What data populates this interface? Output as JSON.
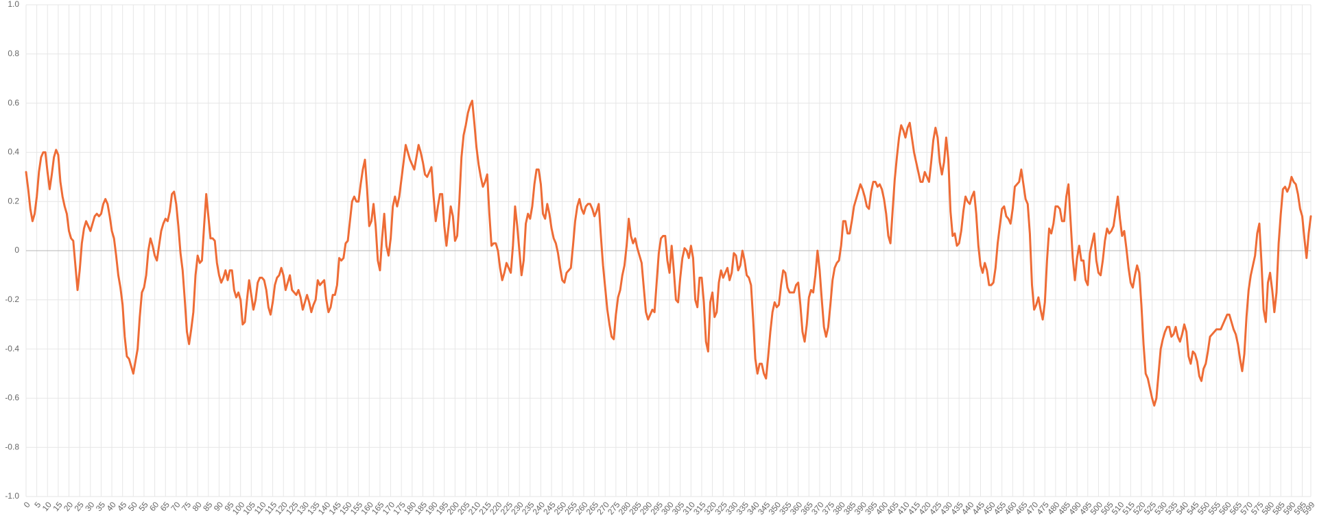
{
  "chart_data": {
    "type": "line",
    "color": "#ee6c36",
    "grid": true,
    "xlim": [
      0,
      599
    ],
    "ylim": [
      -1,
      1
    ],
    "yticks": [
      {
        "value": -1,
        "label": "-1.0"
      },
      -0.8,
      -0.6,
      -0.4,
      -0.2,
      0,
      0.2,
      0.4,
      0.6,
      0.8,
      {
        "value": 1,
        "label": "1.0"
      }
    ],
    "xticks": [
      0,
      5,
      10,
      15,
      20,
      25,
      30,
      35,
      40,
      45,
      50,
      55,
      60,
      65,
      70,
      75,
      80,
      85,
      90,
      95,
      100,
      105,
      110,
      115,
      120,
      125,
      130,
      135,
      140,
      145,
      150,
      155,
      160,
      165,
      170,
      175,
      180,
      185,
      190,
      195,
      200,
      205,
      210,
      215,
      220,
      225,
      230,
      235,
      240,
      245,
      250,
      255,
      260,
      265,
      270,
      275,
      280,
      285,
      290,
      295,
      300,
      305,
      310,
      315,
      320,
      325,
      330,
      335,
      340,
      345,
      350,
      355,
      360,
      365,
      370,
      375,
      380,
      385,
      390,
      395,
      400,
      405,
      410,
      415,
      420,
      425,
      430,
      435,
      440,
      445,
      450,
      455,
      460,
      465,
      470,
      475,
      480,
      485,
      490,
      495,
      500,
      505,
      510,
      515,
      520,
      525,
      530,
      535,
      540,
      545,
      550,
      555,
      560,
      565,
      570,
      575,
      580,
      585,
      590,
      595,
      599
    ],
    "x": [
      0,
      1,
      2,
      3,
      4,
      5,
      6,
      7,
      8,
      9,
      10,
      11,
      12,
      13,
      14,
      15,
      16,
      17,
      18,
      19,
      20,
      21,
      22,
      23,
      24,
      25,
      26,
      27,
      28,
      29,
      30,
      31,
      32,
      33,
      34,
      35,
      36,
      37,
      38,
      39,
      40,
      41,
      42,
      43,
      44,
      45,
      46,
      47,
      48,
      49,
      50,
      51,
      52,
      53,
      54,
      55,
      56,
      57,
      58,
      59,
      60,
      61,
      62,
      63,
      64,
      65,
      66,
      67,
      68,
      69,
      70,
      71,
      72,
      73,
      74,
      75,
      76,
      77,
      78,
      79,
      80,
      81,
      82,
      83,
      84,
      85,
      86,
      87,
      88,
      89,
      90,
      91,
      92,
      93,
      94,
      95,
      96,
      97,
      98,
      99,
      100,
      101,
      102,
      103,
      104,
      105,
      106,
      107,
      108,
      109,
      110,
      111,
      112,
      113,
      114,
      115,
      116,
      117,
      118,
      119,
      120,
      121,
      122,
      123,
      124,
      125,
      126,
      127,
      128,
      129,
      130,
      131,
      132,
      133,
      134,
      135,
      136,
      137,
      138,
      139,
      140,
      141,
      142,
      143,
      144,
      145,
      146,
      147,
      148,
      149,
      150,
      151,
      152,
      153,
      154,
      155,
      156,
      157,
      158,
      159,
      160,
      161,
      162,
      163,
      164,
      165,
      166,
      167,
      168,
      169,
      170,
      171,
      172,
      173,
      174,
      175,
      176,
      177,
      178,
      179,
      180,
      181,
      182,
      183,
      184,
      185,
      186,
      187,
      188,
      189,
      190,
      191,
      192,
      193,
      194,
      195,
      196,
      197,
      198,
      199,
      200,
      201,
      202,
      203,
      204,
      205,
      206,
      207,
      208,
      209,
      210,
      211,
      212,
      213,
      214,
      215,
      216,
      217,
      218,
      219,
      220,
      221,
      222,
      223,
      224,
      225,
      226,
      227,
      228,
      229,
      230,
      231,
      232,
      233,
      234,
      235,
      236,
      237,
      238,
      239,
      240,
      241,
      242,
      243,
      244,
      245,
      246,
      247,
      248,
      249,
      250,
      251,
      252,
      253,
      254,
      255,
      256,
      257,
      258,
      259,
      260,
      261,
      262,
      263,
      264,
      265,
      266,
      267,
      268,
      269,
      270,
      271,
      272,
      273,
      274,
      275,
      276,
      277,
      278,
      279,
      280,
      281,
      282,
      283,
      284,
      285,
      286,
      287,
      288,
      289,
      290,
      291,
      292,
      293,
      294,
      295,
      296,
      297,
      298,
      299,
      300,
      301,
      302,
      303,
      304,
      305,
      306,
      307,
      308,
      309,
      310,
      311,
      312,
      313,
      314,
      315,
      316,
      317,
      318,
      319,
      320,
      321,
      322,
      323,
      324,
      325,
      326,
      327,
      328,
      329,
      330,
      331,
      332,
      333,
      334,
      335,
      336,
      337,
      338,
      339,
      340,
      341,
      342,
      343,
      344,
      345,
      346,
      347,
      348,
      349,
      350,
      351,
      352,
      353,
      354,
      355,
      356,
      357,
      358,
      359,
      360,
      361,
      362,
      363,
      364,
      365,
      366,
      367,
      368,
      369,
      370,
      371,
      372,
      373,
      374,
      375,
      376,
      377,
      378,
      379,
      380,
      381,
      382,
      383,
      384,
      385,
      386,
      387,
      388,
      389,
      390,
      391,
      392,
      393,
      394,
      395,
      396,
      397,
      398,
      399,
      400,
      401,
      402,
      403,
      404,
      405,
      406,
      407,
      408,
      409,
      410,
      411,
      412,
      413,
      414,
      415,
      416,
      417,
      418,
      419,
      420,
      421,
      422,
      423,
      424,
      425,
      426,
      427,
      428,
      429,
      430,
      431,
      432,
      433,
      434,
      435,
      436,
      437,
      438,
      439,
      440,
      441,
      442,
      443,
      444,
      445,
      446,
      447,
      448,
      449,
      450,
      451,
      452,
      453,
      454,
      455,
      456,
      457,
      458,
      459,
      460,
      461,
      462,
      463,
      464,
      465,
      466,
      467,
      468,
      469,
      470,
      471,
      472,
      473,
      474,
      475,
      476,
      477,
      478,
      479,
      480,
      481,
      482,
      483,
      484,
      485,
      486,
      487,
      488,
      489,
      490,
      491,
      492,
      493,
      494,
      495,
      496,
      497,
      498,
      499,
      500,
      501,
      502,
      503,
      504,
      505,
      506,
      507,
      508,
      509,
      510,
      511,
      512,
      513,
      514,
      515,
      516,
      517,
      518,
      519,
      520,
      521,
      522,
      523,
      524,
      525,
      526,
      527,
      528,
      529,
      530,
      531,
      532,
      533,
      534,
      535,
      536,
      537,
      538,
      539,
      540,
      541,
      542,
      543,
      544,
      545,
      546,
      547,
      548,
      549,
      550,
      551,
      552,
      553,
      554,
      555,
      556,
      557,
      558,
      559,
      560,
      561,
      562,
      563,
      564,
      565,
      566,
      567,
      568,
      569,
      570,
      571,
      572,
      573,
      574,
      575,
      576,
      577,
      578,
      579,
      580,
      581,
      582,
      583,
      584,
      585,
      586,
      587,
      588,
      589,
      590,
      591,
      592,
      593,
      594,
      595,
      596,
      597,
      598,
      599
    ],
    "values": [
      0.32,
      0.25,
      0.17,
      0.12,
      0.15,
      0.22,
      0.32,
      0.38,
      0.4,
      0.4,
      0.32,
      0.25,
      0.31,
      0.38,
      0.41,
      0.39,
      0.28,
      0.22,
      0.18,
      0.15,
      0.08,
      0.05,
      0.04,
      -0.06,
      -0.16,
      -0.08,
      0.03,
      0.09,
      0.12,
      0.1,
      0.08,
      0.11,
      0.14,
      0.15,
      0.14,
      0.15,
      0.19,
      0.21,
      0.19,
      0.14,
      0.08,
      0.05,
      -0.02,
      -0.1,
      -0.15,
      -0.22,
      -0.35,
      -0.43,
      -0.44,
      -0.47,
      -0.5,
      -0.45,
      -0.4,
      -0.27,
      -0.17,
      -0.15,
      -0.1,
      0.0,
      0.05,
      0.02,
      -0.02,
      -0.04,
      0.02,
      0.08,
      0.11,
      0.13,
      0.12,
      0.16,
      0.23,
      0.24,
      0.19,
      0.1,
      -0.01,
      -0.08,
      -0.2,
      -0.33,
      -0.38,
      -0.32,
      -0.25,
      -0.1,
      -0.02,
      -0.05,
      -0.04,
      0.1,
      0.23,
      0.14,
      0.05,
      0.05,
      0.04,
      -0.05,
      -0.1,
      -0.13,
      -0.11,
      -0.08,
      -0.12,
      -0.08,
      -0.08,
      -0.16,
      -0.19,
      -0.17,
      -0.2,
      -0.3,
      -0.29,
      -0.2,
      -0.12,
      -0.18,
      -0.24,
      -0.2,
      -0.13,
      -0.11,
      -0.11,
      -0.12,
      -0.16,
      -0.23,
      -0.26,
      -0.21,
      -0.14,
      -0.11,
      -0.1,
      -0.07,
      -0.1,
      -0.16,
      -0.13,
      -0.1,
      -0.16,
      -0.17,
      -0.18,
      -0.16,
      -0.19,
      -0.24,
      -0.21,
      -0.18,
      -0.21,
      -0.25,
      -0.22,
      -0.2,
      -0.12,
      -0.14,
      -0.13,
      -0.12,
      -0.2,
      -0.25,
      -0.23,
      -0.18,
      -0.18,
      -0.14,
      -0.03,
      -0.04,
      -0.03,
      0.03,
      0.04,
      0.12,
      0.2,
      0.22,
      0.2,
      0.2,
      0.27,
      0.33,
      0.37,
      0.25,
      0.1,
      0.12,
      0.19,
      0.1,
      -0.04,
      -0.08,
      0.05,
      0.15,
      0.02,
      -0.02,
      0.05,
      0.18,
      0.22,
      0.18,
      0.22,
      0.29,
      0.36,
      0.43,
      0.4,
      0.37,
      0.35,
      0.33,
      0.38,
      0.43,
      0.4,
      0.36,
      0.31,
      0.3,
      0.32,
      0.34,
      0.22,
      0.12,
      0.18,
      0.23,
      0.23,
      0.1,
      0.02,
      0.1,
      0.18,
      0.14,
      0.04,
      0.06,
      0.2,
      0.38,
      0.47,
      0.51,
      0.56,
      0.59,
      0.61,
      0.52,
      0.42,
      0.35,
      0.3,
      0.26,
      0.28,
      0.31,
      0.15,
      0.02,
      0.03,
      0.03,
      0.0,
      -0.07,
      -0.12,
      -0.09,
      -0.05,
      -0.07,
      -0.09,
      0.02,
      0.18,
      0.1,
      0.0,
      -0.1,
      -0.04,
      0.11,
      0.15,
      0.13,
      0.18,
      0.27,
      0.33,
      0.33,
      0.27,
      0.15,
      0.13,
      0.19,
      0.15,
      0.09,
      0.05,
      0.03,
      -0.01,
      -0.07,
      -0.12,
      -0.13,
      -0.09,
      -0.08,
      -0.07,
      0.02,
      0.12,
      0.18,
      0.21,
      0.17,
      0.15,
      0.18,
      0.19,
      0.19,
      0.17,
      0.14,
      0.16,
      0.19,
      0.06,
      -0.06,
      -0.15,
      -0.24,
      -0.3,
      -0.35,
      -0.36,
      -0.26,
      -0.19,
      -0.16,
      -0.1,
      -0.06,
      0.02,
      0.13,
      0.06,
      0.03,
      0.05,
      0.01,
      -0.02,
      -0.05,
      -0.15,
      -0.25,
      -0.28,
      -0.26,
      -0.24,
      -0.25,
      -0.13,
      -0.01,
      0.05,
      0.06,
      0.06,
      -0.04,
      -0.09,
      0.02,
      -0.08,
      -0.2,
      -0.21,
      -0.11,
      -0.03,
      0.01,
      0.0,
      -0.03,
      0.02,
      -0.03,
      -0.2,
      -0.23,
      -0.11,
      -0.11,
      -0.21,
      -0.37,
      -0.41,
      -0.21,
      -0.17,
      -0.27,
      -0.25,
      -0.13,
      -0.08,
      -0.11,
      -0.09,
      -0.07,
      -0.12,
      -0.09,
      -0.01,
      -0.02,
      -0.08,
      -0.06,
      0.0,
      -0.04,
      -0.1,
      -0.11,
      -0.14,
      -0.28,
      -0.44,
      -0.5,
      -0.46,
      -0.46,
      -0.5,
      -0.52,
      -0.43,
      -0.33,
      -0.25,
      -0.21,
      -0.23,
      -0.22,
      -0.14,
      -0.08,
      -0.09,
      -0.15,
      -0.17,
      -0.17,
      -0.17,
      -0.14,
      -0.13,
      -0.22,
      -0.33,
      -0.37,
      -0.3,
      -0.19,
      -0.16,
      -0.17,
      -0.1,
      0.0,
      -0.08,
      -0.2,
      -0.31,
      -0.35,
      -0.31,
      -0.22,
      -0.12,
      -0.07,
      -0.05,
      -0.04,
      0.02,
      0.12,
      0.12,
      0.07,
      0.07,
      0.12,
      0.18,
      0.21,
      0.24,
      0.27,
      0.25,
      0.22,
      0.18,
      0.17,
      0.24,
      0.28,
      0.28,
      0.26,
      0.27,
      0.25,
      0.21,
      0.15,
      0.06,
      0.03,
      0.16,
      0.29,
      0.38,
      0.46,
      0.51,
      0.49,
      0.46,
      0.5,
      0.52,
      0.46,
      0.4,
      0.36,
      0.32,
      0.28,
      0.28,
      0.32,
      0.3,
      0.28,
      0.36,
      0.45,
      0.5,
      0.46,
      0.36,
      0.31,
      0.36,
      0.46,
      0.37,
      0.16,
      0.06,
      0.07,
      0.02,
      0.03,
      0.08,
      0.16,
      0.22,
      0.2,
      0.19,
      0.22,
      0.24,
      0.15,
      0.02,
      -0.06,
      -0.09,
      -0.05,
      -0.08,
      -0.14,
      -0.14,
      -0.13,
      -0.07,
      0.03,
      0.1,
      0.17,
      0.18,
      0.14,
      0.13,
      0.11,
      0.17,
      0.26,
      0.27,
      0.28,
      0.33,
      0.27,
      0.21,
      0.19,
      0.07,
      -0.14,
      -0.24,
      -0.22,
      -0.19,
      -0.24,
      -0.28,
      -0.21,
      -0.04,
      0.09,
      0.07,
      0.11,
      0.18,
      0.18,
      0.17,
      0.12,
      0.12,
      0.22,
      0.27,
      0.12,
      -0.03,
      -0.12,
      -0.03,
      0.02,
      -0.04,
      -0.04,
      -0.12,
      -0.14,
      -0.01,
      0.03,
      0.07,
      -0.04,
      -0.09,
      -0.1,
      -0.04,
      0.04,
      0.09,
      0.07,
      0.08,
      0.1,
      0.16,
      0.22,
      0.13,
      0.06,
      0.08,
      0.01,
      -0.07,
      -0.13,
      -0.15,
      -0.1,
      -0.06,
      -0.09,
      -0.22,
      -0.38,
      -0.5,
      -0.52,
      -0.56,
      -0.6,
      -0.63,
      -0.6,
      -0.5,
      -0.4,
      -0.36,
      -0.33,
      -0.31,
      -0.31,
      -0.35,
      -0.34,
      -0.31,
      -0.35,
      -0.37,
      -0.34,
      -0.3,
      -0.33,
      -0.43,
      -0.46,
      -0.41,
      -0.42,
      -0.45,
      -0.51,
      -0.53,
      -0.48,
      -0.46,
      -0.41,
      -0.35,
      -0.34,
      -0.33,
      -0.32,
      -0.32,
      -0.32,
      -0.3,
      -0.28,
      -0.26,
      -0.26,
      -0.29,
      -0.32,
      -0.34,
      -0.38,
      -0.44,
      -0.49,
      -0.42,
      -0.27,
      -0.16,
      -0.1,
      -0.06,
      -0.02,
      0.07,
      0.11,
      -0.05,
      -0.24,
      -0.29,
      -0.13,
      -0.09,
      -0.16,
      -0.25,
      -0.17,
      0.03,
      0.15,
      0.25,
      0.26,
      0.24,
      0.26,
      0.3,
      0.28,
      0.27,
      0.23,
      0.17,
      0.14,
      0.05,
      -0.03,
      0.07,
      0.14
    ]
  }
}
